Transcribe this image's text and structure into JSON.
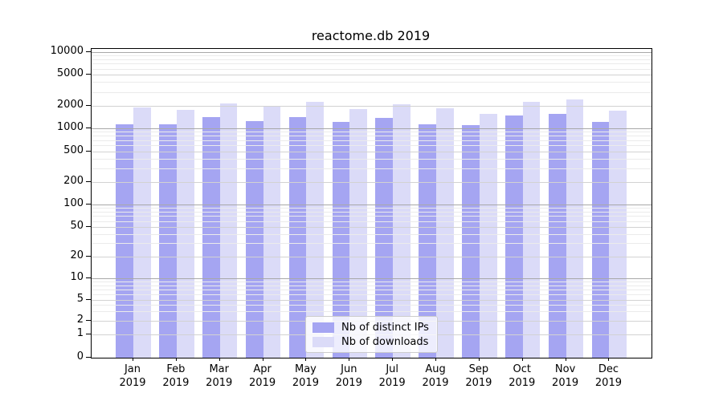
{
  "chart_data": {
    "type": "bar",
    "title": "reactome.db 2019",
    "categories": [
      "Jan",
      "Feb",
      "Mar",
      "Apr",
      "May",
      "Jun",
      "Jul",
      "Aug",
      "Sep",
      "Oct",
      "Nov",
      "Dec"
    ],
    "x_tick_second_line": "2019",
    "series": [
      {
        "name": "Nb of distinct IPs",
        "color": "#a5a5f2",
        "values": [
          1130,
          1110,
          1400,
          1250,
          1410,
          1200,
          1370,
          1120,
          1090,
          1470,
          1540,
          1200
        ]
      },
      {
        "name": "Nb of downloads",
        "color": "#dbdbf8",
        "values": [
          1900,
          1760,
          2150,
          1950,
          2250,
          1810,
          2110,
          1870,
          1570,
          2250,
          2420,
          1740
        ]
      }
    ],
    "y_ticks": [
      0,
      1,
      2,
      5,
      10,
      20,
      50,
      100,
      200,
      500,
      1000,
      2000,
      5000,
      10000
    ],
    "y_scale": "log",
    "ylim": [
      0,
      10000
    ],
    "grid": true,
    "legend_position": "lower center"
  },
  "colors": {
    "bar_distinct_ips": "#a5a5f2",
    "bar_downloads": "#dbdbf8",
    "grid_decade": "#a8a8a8",
    "grid_major": "#d2d2d2",
    "grid_minor": "#ebebeb",
    "spine": "#000000",
    "legend_border": "#cccccc",
    "background": "#ffffff",
    "text": "#000000"
  }
}
